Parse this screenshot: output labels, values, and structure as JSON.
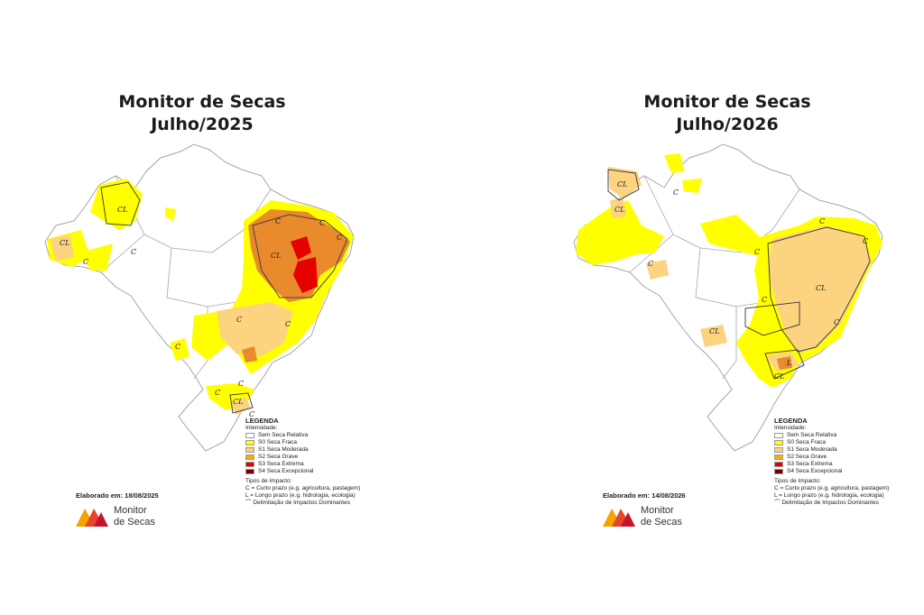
{
  "colors": {
    "s0": "#ffff00",
    "s1": "#fcd37f",
    "s2": "#ffaa00",
    "s3": "#e60000",
    "s4": "#730000",
    "orange_fill": "#e98a2c",
    "border": "#a6a6a6"
  },
  "legend": {
    "title": "LEGENDA",
    "subtitle": "Intensidade:",
    "items": [
      {
        "label": "Sem Seca Relativa",
        "color": "#ffffff"
      },
      {
        "label": "S0 Seca Fraca",
        "color": "#ffff00"
      },
      {
        "label": "S1 Seca Moderada",
        "color": "#fcd37f"
      },
      {
        "label": "S2 Seca Grave",
        "color": "#ffaa00"
      },
      {
        "label": "S3 Seca Extrema",
        "color": "#e60000"
      },
      {
        "label": "S4 Seca Excepcional",
        "color": "#730000"
      }
    ],
    "impact_title": "Tipos de Impacto:",
    "impact_c": "C = Curto prazo (e.g. agricultura, pastagem)",
    "impact_l": "L = Longo prazo (e.g. hidrologia, ecologia)",
    "impact_line": "Delimitação de Impactos Dominantes"
  },
  "logo": {
    "line1": "Monitor",
    "line2": "de Secas"
  },
  "maps": [
    {
      "title_line1": "Monitor de Secas",
      "title_line2": "Julho/2025",
      "elaborado": "Elaborado em: 18/08/2025",
      "labels": [
        "CL",
        "CL",
        "C",
        "C",
        "C",
        "CL",
        "C",
        "C",
        "C",
        "C",
        "C",
        "C",
        "C",
        "CL",
        "C"
      ]
    },
    {
      "title_line1": "Monitor de Secas",
      "title_line2": "Julho/2026",
      "elaborado": "Elaborado em: 14/08/2026",
      "labels": [
        "CL",
        "CL",
        "C",
        "C",
        "C",
        "C",
        "CL",
        "C",
        "C",
        "CL",
        "C",
        "CL",
        "L"
      ]
    }
  ]
}
